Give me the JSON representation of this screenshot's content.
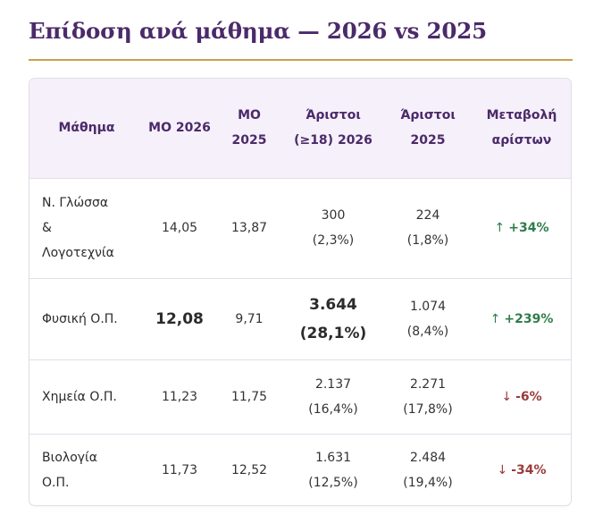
{
  "title": "Επίδοση ανά μάθημα — 2026 vs 2025",
  "headers": {
    "subject": "Μάθημα",
    "mo2026": [
      "ΜΟ",
      "2026"
    ],
    "mo2025": [
      "ΜΟ",
      "2025"
    ],
    "top2026": [
      "Άριστοι",
      "(≥18)",
      "2026"
    ],
    "top2025": [
      "Άριστοι",
      "2025"
    ],
    "change": [
      "Μεταβολή",
      "αρίστων"
    ]
  },
  "rows": [
    {
      "subject": [
        "Ν. Γλώσσα",
        "&",
        "Λογοτεχνία"
      ],
      "mo2026": "14,05",
      "mo2025": "13,87",
      "top2026": [
        "300",
        "(2,3%)"
      ],
      "top2025": [
        "224",
        "(1,8%)"
      ],
      "change_arrow": "↑",
      "change": "+34%",
      "direction": "up"
    },
    {
      "subject": [
        "Φυσική Ο.Π."
      ],
      "mo2026": "12,08",
      "mo2025": "9,71",
      "top2026": [
        "3.644",
        "(28,1%)"
      ],
      "top2025": [
        "1.074",
        "(8,4%)"
      ],
      "change_arrow": "↑",
      "change": "+239%",
      "direction": "up"
    },
    {
      "subject": [
        "Χημεία Ο.Π."
      ],
      "mo2026": "11,23",
      "mo2025": "11,75",
      "top2026": [
        "2.137",
        "(16,4%)"
      ],
      "top2025": [
        "2.271",
        "(17,8%)"
      ],
      "change_arrow": "↓",
      "change": "-6%",
      "direction": "down"
    },
    {
      "subject": [
        "Βιολογία",
        "Ο.Π."
      ],
      "mo2026": "11,73",
      "mo2025": "12,52",
      "top2026": [
        "1.631",
        "(12,5%)"
      ],
      "top2025": [
        "2.484",
        "(19,4%)"
      ],
      "change_arrow": "↓",
      "change": "-34%",
      "direction": "down"
    }
  ],
  "colors": {
    "title": "#4b2a6a",
    "rule": "#c8a24a",
    "header_bg": "#f6f0fa",
    "up": "#2f7d4a",
    "down": "#9a3b3b"
  }
}
